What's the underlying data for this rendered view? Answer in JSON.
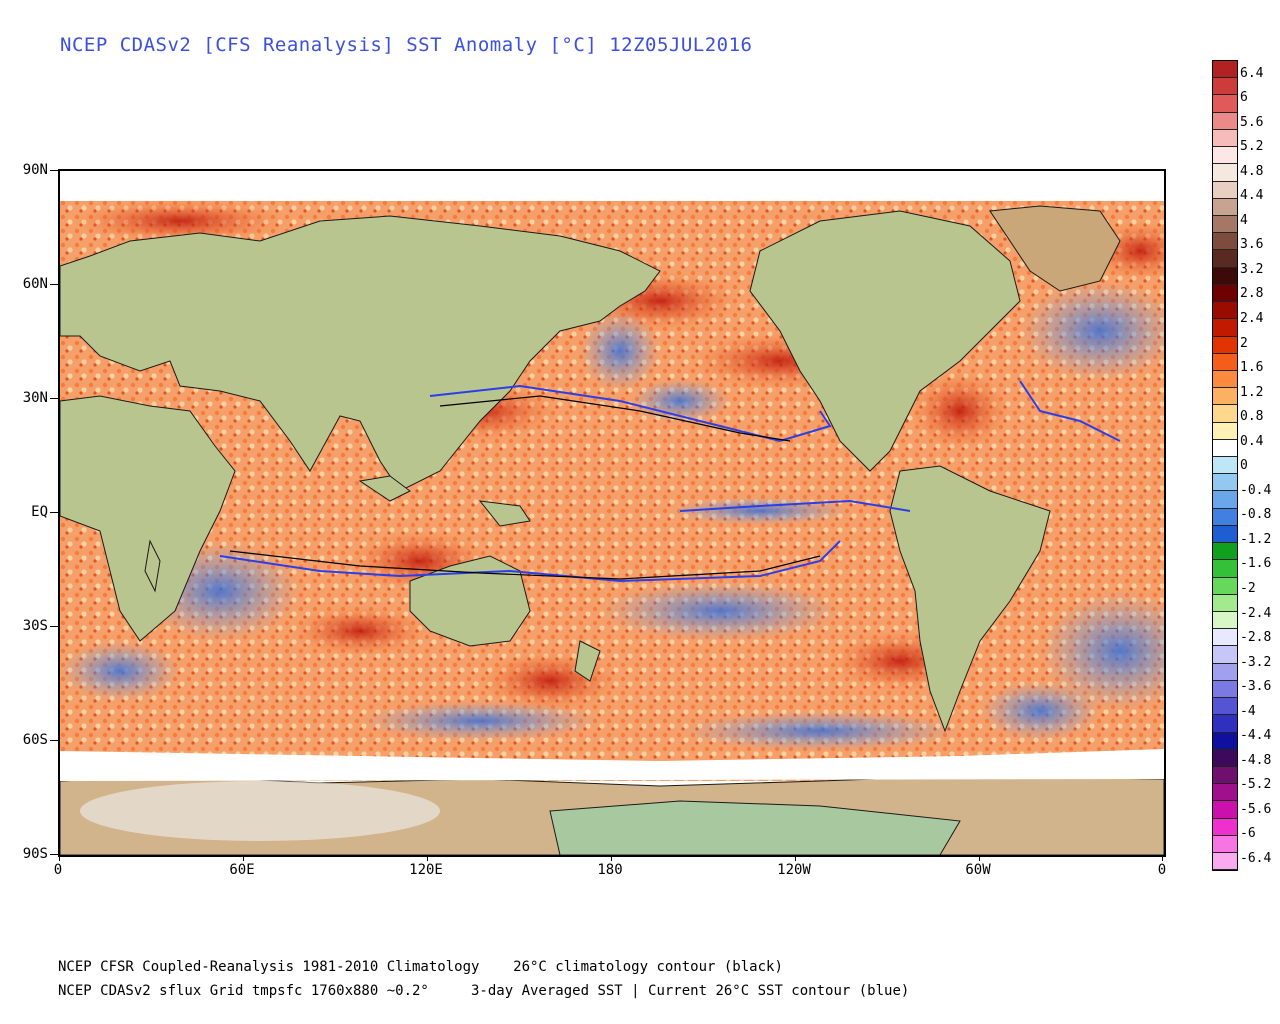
{
  "title": "NCEP CDASv2 [CFS Reanalysis] SST Anomaly [°C] 12Z05JUL2016",
  "axes": {
    "y_labels": [
      "90N",
      "60N",
      "30N",
      "EQ",
      "30S",
      "60S",
      "90S"
    ],
    "x_labels": [
      "0",
      "60E",
      "120E",
      "180",
      "120W",
      "60W",
      "0"
    ]
  },
  "footer": {
    "line1": "NCEP CFSR Coupled-Reanalysis 1981-2010 Climatology    26°C climatology contour (black)",
    "line2": "NCEP CDASv2 sflux Grid tmpsfc 1760x880 ~0.2°     3-day Averaged SST | Current 26°C SST contour (blue)"
  },
  "colorbar": {
    "labels": [
      "6.4",
      "6",
      "5.6",
      "5.2",
      "4.8",
      "4.4",
      "4",
      "3.6",
      "3.2",
      "2.8",
      "2.4",
      "2",
      "1.6",
      "1.2",
      "0.8",
      "0.4",
      "0",
      "-0.4",
      "-0.8",
      "-1.2",
      "-1.6",
      "-2",
      "-2.4",
      "-2.8",
      "-3.2",
      "-3.6",
      "-4",
      "-4.4",
      "-4.8",
      "-5.2",
      "-5.6",
      "-6",
      "-6.4"
    ],
    "colors": [
      "#b22222",
      "#cd3b3b",
      "#e05a5a",
      "#ec8a8a",
      "#f6bcbc",
      "#fde6e6",
      "#f5e9df",
      "#e8cfc2",
      "#c9a392",
      "#a47766",
      "#7d4c3f",
      "#5a2a22",
      "#3d0a0a",
      "#6e0000",
      "#9a0c00",
      "#c11a00",
      "#e23400",
      "#f55d1a",
      "#fa8a3d",
      "#fcb062",
      "#fdd78c",
      "#fdf1b6",
      "#ffffff",
      "#bde6f6",
      "#93c9f1",
      "#6aa6ea",
      "#417fe0",
      "#1f5dd3",
      "#10a01e",
      "#34c038",
      "#66d85c",
      "#a2ea8c",
      "#d7f7c6",
      "#e8e8ff",
      "#c6c6f8",
      "#a0a0ee",
      "#7a7ae2",
      "#5555d4",
      "#3030c0",
      "#1010a0",
      "#3b0a5a",
      "#70106e",
      "#a0108c",
      "#cc10ac",
      "#ef30cc",
      "#f775e2",
      "#fbaaef"
    ]
  },
  "map": {
    "land_color": "#b9c58f",
    "antarctica_color": "#d2b48c",
    "ocean_warm": "#f77b3a",
    "ocean_hot": "#c0190c",
    "ocean_cool": "#7db0ec",
    "ocean_cold": "#3a6fd8",
    "contour_observed": "#2b3fe8",
    "contour_climatology": "#000000"
  }
}
